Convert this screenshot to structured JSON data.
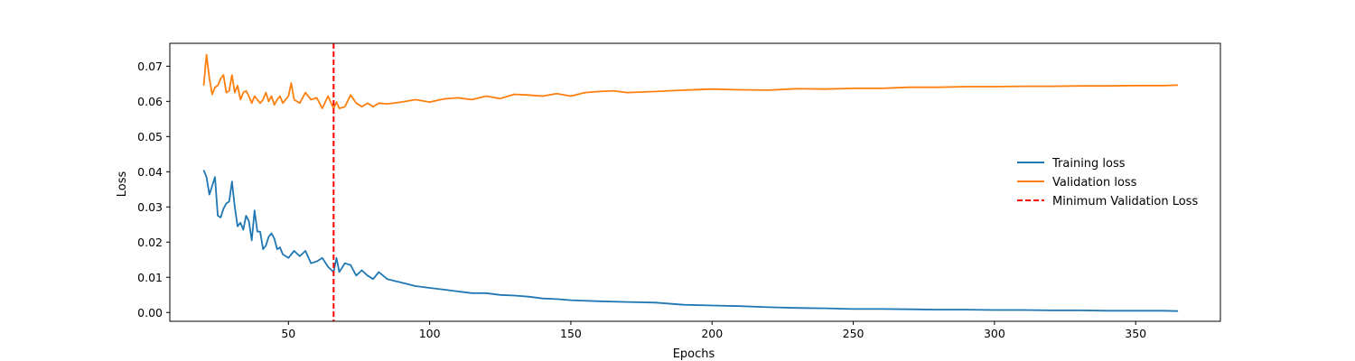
{
  "chart_data": {
    "type": "line",
    "xlabel": "Epochs",
    "ylabel": "Loss",
    "xlim": [
      8,
      380
    ],
    "ylim": [
      -0.0025,
      0.0765
    ],
    "xticks": [
      50,
      100,
      150,
      200,
      250,
      300,
      350
    ],
    "yticks": [
      0.0,
      0.01,
      0.02,
      0.03,
      0.04,
      0.05,
      0.06,
      0.07
    ],
    "ytick_labels": [
      "0.00",
      "0.01",
      "0.02",
      "0.03",
      "0.04",
      "0.05",
      "0.06",
      "0.07"
    ],
    "grid": false,
    "legend_position": "center-right",
    "series": [
      {
        "name": "Training loss",
        "color": "#1f77b4",
        "style": "solid",
        "x": [
          20,
          21,
          22,
          24,
          25,
          26,
          27,
          28,
          29,
          30,
          31,
          32,
          33,
          34,
          35,
          36,
          37,
          38,
          39,
          40,
          41,
          42,
          43,
          44,
          45,
          46,
          47,
          48,
          50,
          52,
          54,
          56,
          58,
          60,
          62,
          64,
          66,
          67,
          68,
          70,
          72,
          74,
          76,
          78,
          80,
          82,
          85,
          90,
          95,
          100,
          105,
          110,
          115,
          120,
          125,
          130,
          135,
          140,
          145,
          150,
          160,
          170,
          180,
          190,
          200,
          210,
          220,
          230,
          240,
          250,
          260,
          270,
          280,
          290,
          300,
          310,
          320,
          330,
          340,
          350,
          360,
          365
        ],
        "y": [
          0.0405,
          0.0385,
          0.0335,
          0.0385,
          0.0275,
          0.027,
          0.0295,
          0.031,
          0.0315,
          0.0372,
          0.03,
          0.0245,
          0.0255,
          0.0235,
          0.0275,
          0.026,
          0.0205,
          0.029,
          0.023,
          0.023,
          0.018,
          0.019,
          0.0215,
          0.0225,
          0.021,
          0.018,
          0.0185,
          0.0165,
          0.0155,
          0.0175,
          0.016,
          0.0175,
          0.014,
          0.0145,
          0.0155,
          0.013,
          0.0115,
          0.0155,
          0.0115,
          0.014,
          0.0135,
          0.0105,
          0.012,
          0.0105,
          0.0095,
          0.0115,
          0.0095,
          0.0085,
          0.0075,
          0.007,
          0.0065,
          0.006,
          0.0055,
          0.0055,
          0.005,
          0.0048,
          0.0045,
          0.004,
          0.0038,
          0.0035,
          0.0032,
          0.003,
          0.0028,
          0.0022,
          0.002,
          0.0018,
          0.0015,
          0.0013,
          0.0012,
          0.001,
          0.001,
          0.0009,
          0.0008,
          0.0008,
          0.0007,
          0.0007,
          0.0006,
          0.0006,
          0.0005,
          0.0005,
          0.0005,
          0.0004
        ]
      },
      {
        "name": "Validation loss",
        "color": "#ff7f0e",
        "style": "solid",
        "x": [
          20,
          21,
          22,
          23,
          24,
          25,
          26,
          27,
          28,
          29,
          30,
          31,
          32,
          33,
          34,
          35,
          36,
          37,
          38,
          39,
          40,
          41,
          42,
          43,
          44,
          45,
          46,
          47,
          48,
          50,
          51,
          52,
          54,
          56,
          58,
          60,
          62,
          64,
          66,
          67,
          68,
          70,
          72,
          74,
          76,
          78,
          80,
          82,
          85,
          90,
          95,
          100,
          105,
          110,
          115,
          120,
          125,
          130,
          135,
          140,
          145,
          150,
          155,
          160,
          165,
          170,
          180,
          190,
          200,
          210,
          220,
          230,
          240,
          250,
          260,
          270,
          280,
          290,
          300,
          310,
          320,
          330,
          340,
          350,
          360,
          365
        ],
        "y": [
          0.0645,
          0.0733,
          0.0665,
          0.062,
          0.064,
          0.0645,
          0.0665,
          0.0675,
          0.0625,
          0.063,
          0.0675,
          0.0625,
          0.0645,
          0.0605,
          0.0625,
          0.063,
          0.0615,
          0.0595,
          0.0615,
          0.0605,
          0.0595,
          0.0605,
          0.0625,
          0.06,
          0.0615,
          0.059,
          0.0605,
          0.0615,
          0.0595,
          0.0615,
          0.0652,
          0.0605,
          0.0595,
          0.0625,
          0.0605,
          0.061,
          0.058,
          0.0615,
          0.058,
          0.0598,
          0.058,
          0.0585,
          0.0618,
          0.0595,
          0.0585,
          0.0595,
          0.0585,
          0.0595,
          0.0593,
          0.0598,
          0.0605,
          0.0598,
          0.0607,
          0.061,
          0.0605,
          0.0615,
          0.0608,
          0.062,
          0.0618,
          0.0615,
          0.0622,
          0.0615,
          0.0625,
          0.0628,
          0.063,
          0.0625,
          0.0628,
          0.0632,
          0.0635,
          0.0633,
          0.0632,
          0.0636,
          0.0635,
          0.0637,
          0.0637,
          0.064,
          0.064,
          0.0642,
          0.0642,
          0.0643,
          0.0643,
          0.0644,
          0.0644,
          0.0645,
          0.0645,
          0.0646
        ]
      },
      {
        "name": "Minimum Validation Loss",
        "color": "#ff0000",
        "style": "dashed",
        "type": "vline",
        "x_value": 66
      }
    ]
  }
}
